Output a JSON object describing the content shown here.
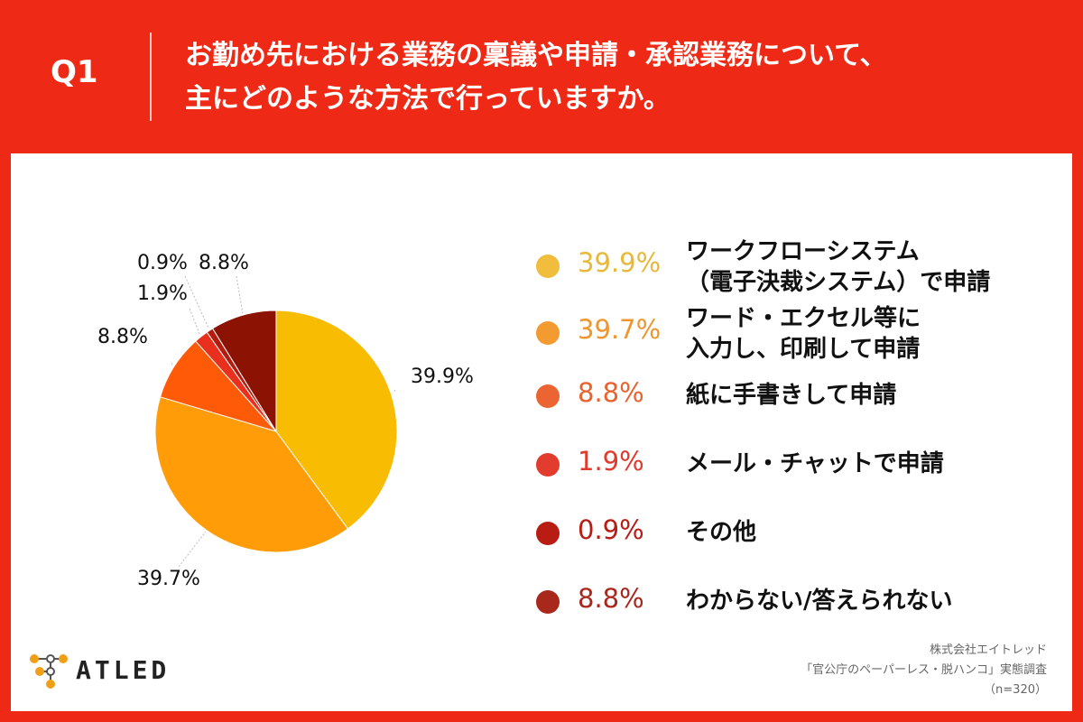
{
  "header": {
    "qnum": "Q1",
    "title_line1": "お勤め先における業務の稟議や申請・承認業務について、",
    "title_line2": "主にどのような方法で行っていますか。"
  },
  "chart_data": {
    "type": "pie",
    "title": "",
    "unit": "%",
    "start_angle": "12 o'clock, clockwise",
    "slices": [
      {
        "label_line1": "ワークフローシステム",
        "label_line2": "（電子決裁システム）で申請",
        "value": 39.9,
        "pct_text": "39.9%",
        "color": "#f8bc02",
        "legend_color": "#f0be3c",
        "pct_color": "#e8b83a"
      },
      {
        "label_line1": "ワード・エクセル等に",
        "label_line2": "入力し、印刷して申請",
        "value": 39.7,
        "pct_text": "39.7%",
        "color": "#ff9c08",
        "legend_color": "#f39a30",
        "pct_color": "#ef9630"
      },
      {
        "label_line1": "紙に手書きして申請",
        "label_line2": "",
        "value": 8.8,
        "pct_text": "8.8%",
        "color": "#ff5a08",
        "legend_color": "#ec6432",
        "pct_color": "#e9622e"
      },
      {
        "label_line1": "メール・チャットで申請",
        "label_line2": "",
        "value": 1.9,
        "pct_text": "1.9%",
        "color": "#e8301c",
        "legend_color": "#e23c2e",
        "pct_color": "#df3a2c"
      },
      {
        "label_line1": "その他",
        "label_line2": "",
        "value": 0.9,
        "pct_text": "0.9%",
        "color": "#b51c10",
        "legend_color": "#b81c12",
        "pct_color": "#b81c12"
      },
      {
        "label_line1": "わからない/答えられない",
        "label_line2": "",
        "value": 8.8,
        "pct_text": "8.8%",
        "color": "#8c1204",
        "legend_color": "#a8281c",
        "pct_color": "#a8281c"
      }
    ]
  },
  "logo": {
    "text": "ATLED",
    "dot_color": "#f0a018",
    "node_color": "#555555"
  },
  "credit": {
    "line1": "株式会社エイトレッド",
    "line2": "「官公庁のペーパーレス・脱ハンコ」実態調査",
    "line3": "（n=320）"
  }
}
